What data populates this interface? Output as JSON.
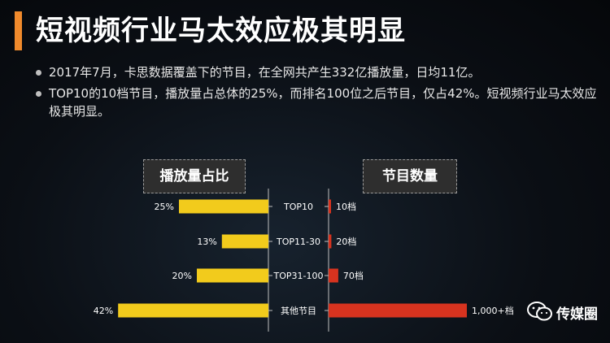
{
  "title": "短视频行业马太效应极其明显",
  "bullets": [
    "2017年7月，卡思数据覆盖下的节目，在全网共产生332亿播放量，日均11亿。",
    "TOP10的10档节目，播放量占总体的25%，而排名100位之后节目，仅占42%。短视频行业马太效应极其明显。"
  ],
  "watermark": "传媒圈",
  "chart_data": {
    "type": "bar",
    "left_header": "播放量占比",
    "right_header": "节目数量",
    "categories": [
      "TOP10",
      "TOP11-30",
      "TOP31-100",
      "其他节目"
    ],
    "series": [
      {
        "name": "播放量占比",
        "values": [
          25,
          13,
          20,
          42
        ],
        "labels": [
          "25%",
          "13%",
          "20%",
          "42%"
        ],
        "color": "#f2cb1c"
      },
      {
        "name": "节目数量",
        "values": [
          10,
          20,
          70,
          1000
        ],
        "labels": [
          "10档",
          "20档",
          "70档",
          "1,000+档"
        ],
        "color": "#d7331f"
      }
    ]
  }
}
